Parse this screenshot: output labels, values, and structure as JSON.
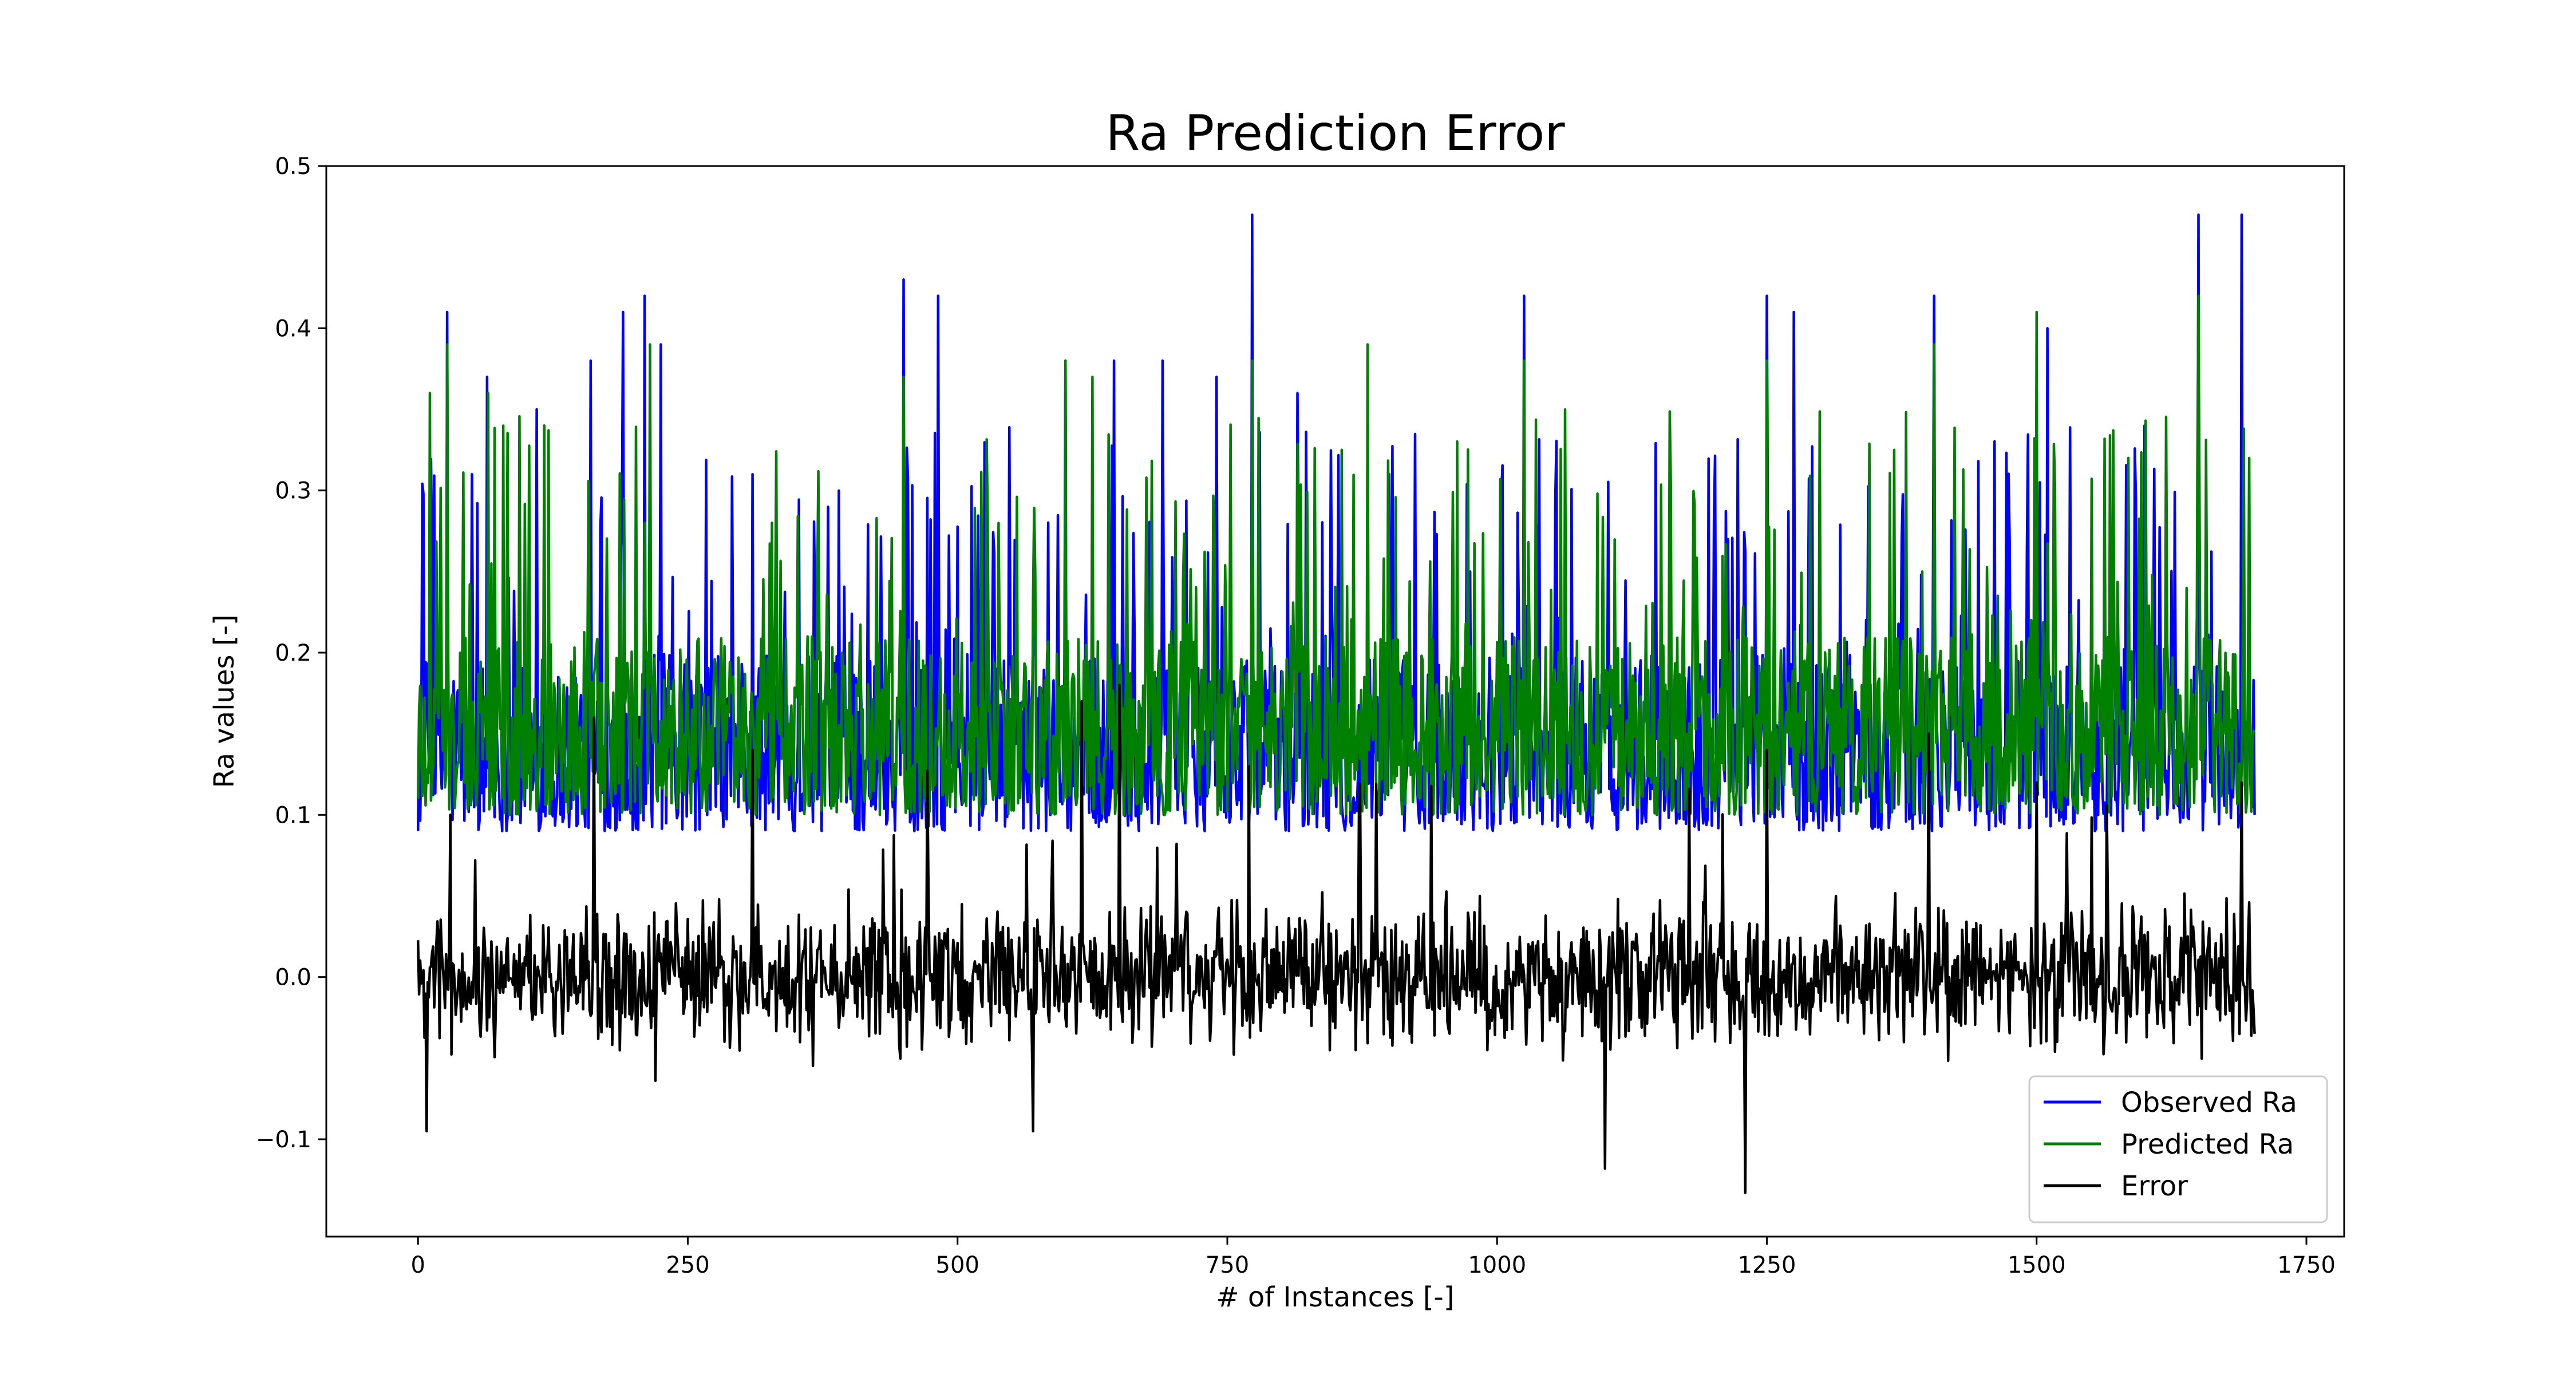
{
  "chart_data": {
    "type": "line",
    "title": "Ra Prediction Error",
    "xlabel": "# of Instances [-]",
    "ylabel": "Ra values [-]",
    "xlim": [
      -85,
      1785
    ],
    "ylim": [
      -0.16,
      0.5
    ],
    "xticks": [
      0,
      250,
      500,
      750,
      1000,
      1250,
      1500,
      1750
    ],
    "xtick_labels": [
      "0",
      "250",
      "500",
      "750",
      "1000",
      "1250",
      "1500",
      "1750"
    ],
    "yticks": [
      -0.1,
      0.0,
      0.1,
      0.2,
      0.3,
      0.4,
      0.5
    ],
    "ytick_labels": [
      "−0.1",
      "0.0",
      "0.1",
      "0.2",
      "0.3",
      "0.4",
      "0.5"
    ],
    "grid": false,
    "legend_position": "bottom-right",
    "n_points": 1703,
    "series": [
      {
        "name": "Observed Ra",
        "color": "#0000ff",
        "peaks": [
          [
            0,
            0.09
          ],
          [
            27,
            0.41
          ],
          [
            50,
            0.31
          ],
          [
            64,
            0.37
          ],
          [
            110,
            0.35
          ],
          [
            160,
            0.38
          ],
          [
            190,
            0.41
          ],
          [
            210,
            0.42
          ],
          [
            225,
            0.39
          ],
          [
            310,
            0.31
          ],
          [
            450,
            0.43
          ],
          [
            482,
            0.42
          ],
          [
            600,
            0.38
          ],
          [
            645,
            0.38
          ],
          [
            690,
            0.38
          ],
          [
            740,
            0.37
          ],
          [
            773,
            0.47
          ],
          [
            815,
            0.36
          ],
          [
            900,
            0.31
          ],
          [
            1025,
            0.42
          ],
          [
            1250,
            0.42
          ],
          [
            1275,
            0.41
          ],
          [
            1405,
            0.42
          ],
          [
            1500,
            0.36
          ],
          [
            1510,
            0.4
          ],
          [
            1600,
            0.34
          ],
          [
            1650,
            0.47
          ],
          [
            1690,
            0.47
          ],
          [
            1703,
            0.1
          ]
        ],
        "baseline_min": 0.09,
        "baseline_max": 0.2
      },
      {
        "name": "Predicted Ra",
        "color": "#008000",
        "peaks": [
          [
            0,
            0.11
          ],
          [
            11,
            0.36
          ],
          [
            27,
            0.39
          ],
          [
            65,
            0.36
          ],
          [
            117,
            0.34
          ],
          [
            215,
            0.39
          ],
          [
            450,
            0.37
          ],
          [
            600,
            0.38
          ],
          [
            625,
            0.37
          ],
          [
            773,
            0.38
          ],
          [
            880,
            0.39
          ],
          [
            1025,
            0.38
          ],
          [
            1250,
            0.38
          ],
          [
            1405,
            0.39
          ],
          [
            1500,
            0.41
          ],
          [
            1650,
            0.42
          ],
          [
            1697,
            0.32
          ],
          [
            1703,
            0.15
          ]
        ],
        "baseline_min": 0.1,
        "baseline_max": 0.21
      },
      {
        "name": "Error",
        "color": "#000000",
        "extremes": [
          [
            8,
            -0.095
          ],
          [
            30,
            0.1
          ],
          [
            163,
            0.16
          ],
          [
            310,
            0.14
          ],
          [
            570,
            -0.095
          ],
          [
            615,
            0.17
          ],
          [
            650,
            0.18
          ],
          [
            770,
            0.13
          ],
          [
            1100,
            -0.118
          ],
          [
            1230,
            -0.133
          ],
          [
            1250,
            0.14
          ],
          [
            1400,
            0.15
          ],
          [
            1500,
            0.12
          ],
          [
            1690,
            0.12
          ],
          [
            1703,
            -0.035
          ]
        ],
        "baseline_min": -0.06,
        "baseline_max": 0.06
      }
    ]
  }
}
